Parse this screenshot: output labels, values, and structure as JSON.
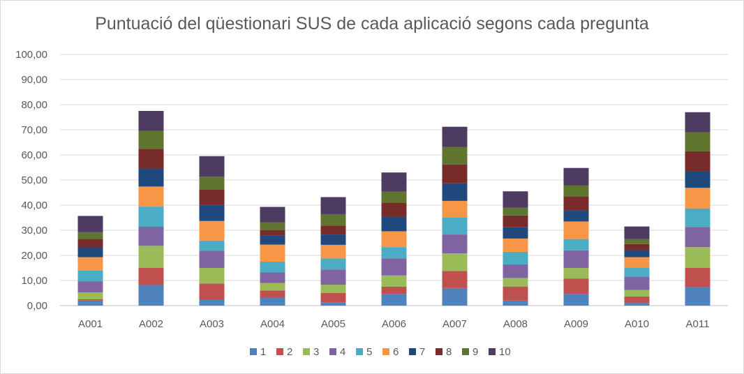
{
  "chart_data": {
    "type": "bar",
    "stacked": true,
    "title": "Puntuació del qüestionari SUS de cada aplicació segons cada pregunta",
    "xlabel": "",
    "ylabel": "",
    "ylim": [
      0,
      100
    ],
    "yticks": [
      "0,00",
      "10,00",
      "20,00",
      "30,00",
      "40,00",
      "50,00",
      "60,00",
      "70,00",
      "80,00",
      "90,00",
      "100,00"
    ],
    "grid": true,
    "legend_position": "bottom",
    "categories": [
      "A001",
      "A002",
      "A003",
      "A004",
      "A005",
      "A006",
      "A007",
      "A008",
      "A009",
      "A010",
      "A011"
    ],
    "series": [
      {
        "name": "1",
        "color": "#4f81bd",
        "values": [
          2.0,
          8.2,
          2.5,
          3.2,
          1.2,
          4.5,
          7.0,
          2.0,
          4.5,
          1.0,
          7.4
        ]
      },
      {
        "name": "2",
        "color": "#c0504d",
        "values": [
          0.5,
          6.8,
          6.3,
          2.8,
          3.8,
          3.0,
          6.8,
          5.6,
          6.3,
          2.6,
          7.6
        ]
      },
      {
        "name": "3",
        "color": "#9bbb59",
        "values": [
          2.8,
          8.8,
          6.2,
          3.0,
          3.3,
          4.5,
          7.0,
          3.4,
          4.2,
          2.6,
          8.3
        ]
      },
      {
        "name": "4",
        "color": "#8064a2",
        "values": [
          4.4,
          7.6,
          6.9,
          4.2,
          6.1,
          6.8,
          7.5,
          5.4,
          7.0,
          5.3,
          8.0
        ]
      },
      {
        "name": "5",
        "color": "#4bacc6",
        "values": [
          4.2,
          8.0,
          4.0,
          4.3,
          4.4,
          4.5,
          6.9,
          5.0,
          4.5,
          3.7,
          7.4
        ]
      },
      {
        "name": "6",
        "color": "#f79646",
        "values": [
          5.4,
          8.0,
          7.8,
          6.8,
          5.4,
          6.3,
          6.5,
          5.3,
          7.0,
          4.1,
          8.2
        ]
      },
      {
        "name": "7",
        "color": "#1f497d",
        "values": [
          3.9,
          7.2,
          6.4,
          3.5,
          4.1,
          5.8,
          7.0,
          4.5,
          4.4,
          2.8,
          6.7
        ]
      },
      {
        "name": "8",
        "color": "#772c2a",
        "values": [
          3.4,
          7.8,
          6.2,
          2.3,
          3.6,
          5.6,
          7.5,
          4.7,
          5.6,
          2.4,
          7.8
        ]
      },
      {
        "name": "9",
        "color": "#5f7530",
        "values": [
          2.6,
          7.1,
          5.0,
          3.1,
          4.5,
          4.4,
          7.0,
          3.1,
          4.3,
          2.0,
          7.6
        ]
      },
      {
        "name": "10",
        "color": "#4d3b62",
        "values": [
          6.5,
          8.0,
          8.2,
          6.1,
          6.8,
          7.6,
          8.0,
          6.5,
          7.0,
          5.0,
          8.0
        ]
      }
    ]
  }
}
